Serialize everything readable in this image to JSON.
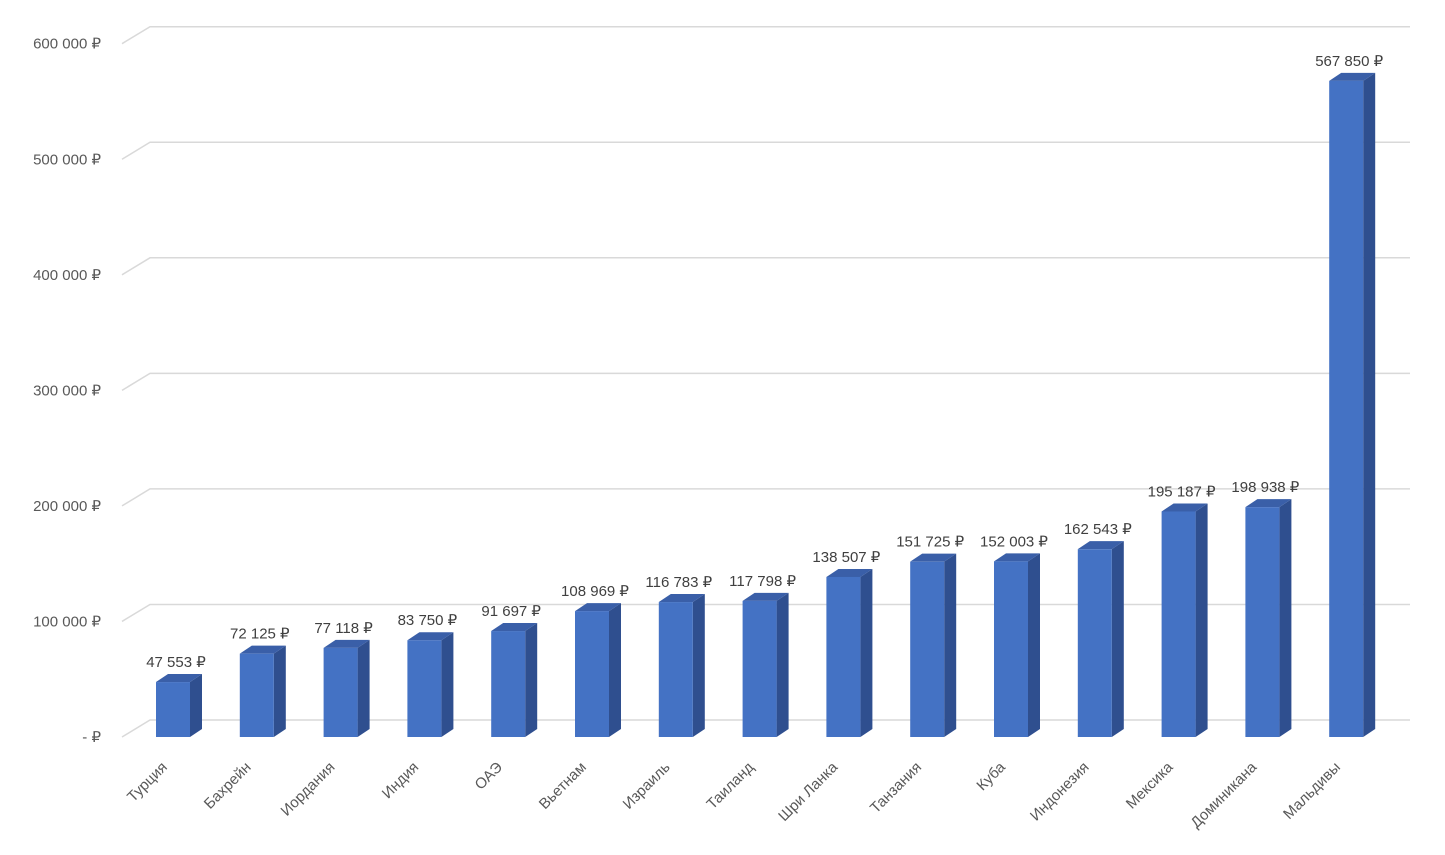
{
  "chart_data": {
    "type": "bar",
    "title": "",
    "xlabel": "",
    "ylabel": "",
    "categories": [
      "Турция",
      "Бахрейн",
      "Иордания",
      "Индия",
      "ОАЭ",
      "Вьетнам",
      "Израиль",
      "Таиланд",
      "Шри Ланка",
      "Танзания",
      "Куба",
      "Индонезия",
      "Мексика",
      "Доминикана",
      "Мальдивы"
    ],
    "values": [
      47553,
      72125,
      77118,
      83750,
      91697,
      108969,
      116783,
      117798,
      138507,
      151725,
      152003,
      162543,
      195187,
      198938,
      567850
    ],
    "data_labels": [
      "47 553 ₽",
      "72 125 ₽",
      "77 118 ₽",
      "83 750 ₽",
      "91 697 ₽",
      "108 969 ₽",
      "116 783 ₽",
      "117 798 ₽",
      "138 507 ₽",
      "151 725 ₽",
      "152 003 ₽",
      "162 543 ₽",
      "195 187 ₽",
      "198 938 ₽",
      "567 850 ₽"
    ],
    "ylim": [
      0,
      600000
    ],
    "yticks": [
      0,
      100000,
      200000,
      300000,
      400000,
      500000,
      600000
    ],
    "ytick_labels": [
      "-   ₽",
      "100 000 ₽",
      "200 000 ₽",
      "300 000 ₽",
      "400 000 ₽",
      "500 000 ₽",
      "600 000 ₽"
    ],
    "grid": true,
    "legend": "none",
    "style": "3d-column",
    "colors": {
      "bar_front": "#4472C4",
      "bar_side": "#2F4F8F",
      "bar_top": "#3A5FA8",
      "grid": "#D9D9D9",
      "text": "#595959"
    }
  }
}
